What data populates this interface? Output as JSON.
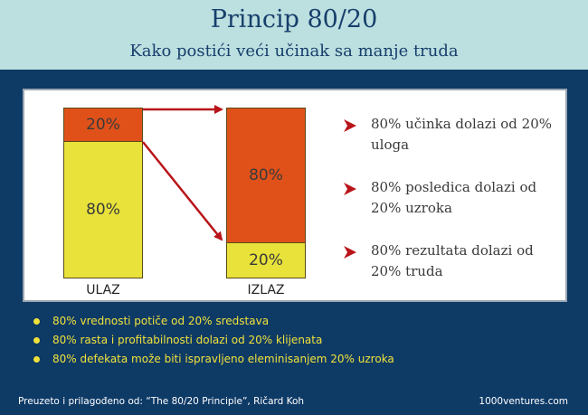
{
  "header": {
    "title": "Princip 80/20",
    "subtitle": "Kako postići veći učinak sa manje truda"
  },
  "diagram": {
    "input": {
      "label": "ULAZ",
      "top_pct": "20%",
      "bottom_pct": "80%"
    },
    "output": {
      "label": "IZLAZ",
      "top_pct": "80%",
      "bottom_pct": "20%"
    },
    "colors": {
      "orange": "#e0511a",
      "yellow": "#e8e23a",
      "arrow": "#b8141a"
    }
  },
  "points": [
    "80% učinka dolazi od 20% uloga",
    "80% posledica dolazi od 20% uzroka",
    "80% rezultata dolazi od 20% truda"
  ],
  "bullets": [
    "80% vrednosti potiče od 20% sredstava",
    "80% rasta i profitabilnosti dolazi od 20% klijenata",
    "80% defekata može biti ispravljeno eleminisanjem 20% uzroka"
  ],
  "footer": {
    "source": "Preuzeto i prilagođeno od: “The 80/20 Principle”, Ričard Koh",
    "site": "1000ventures.com"
  }
}
